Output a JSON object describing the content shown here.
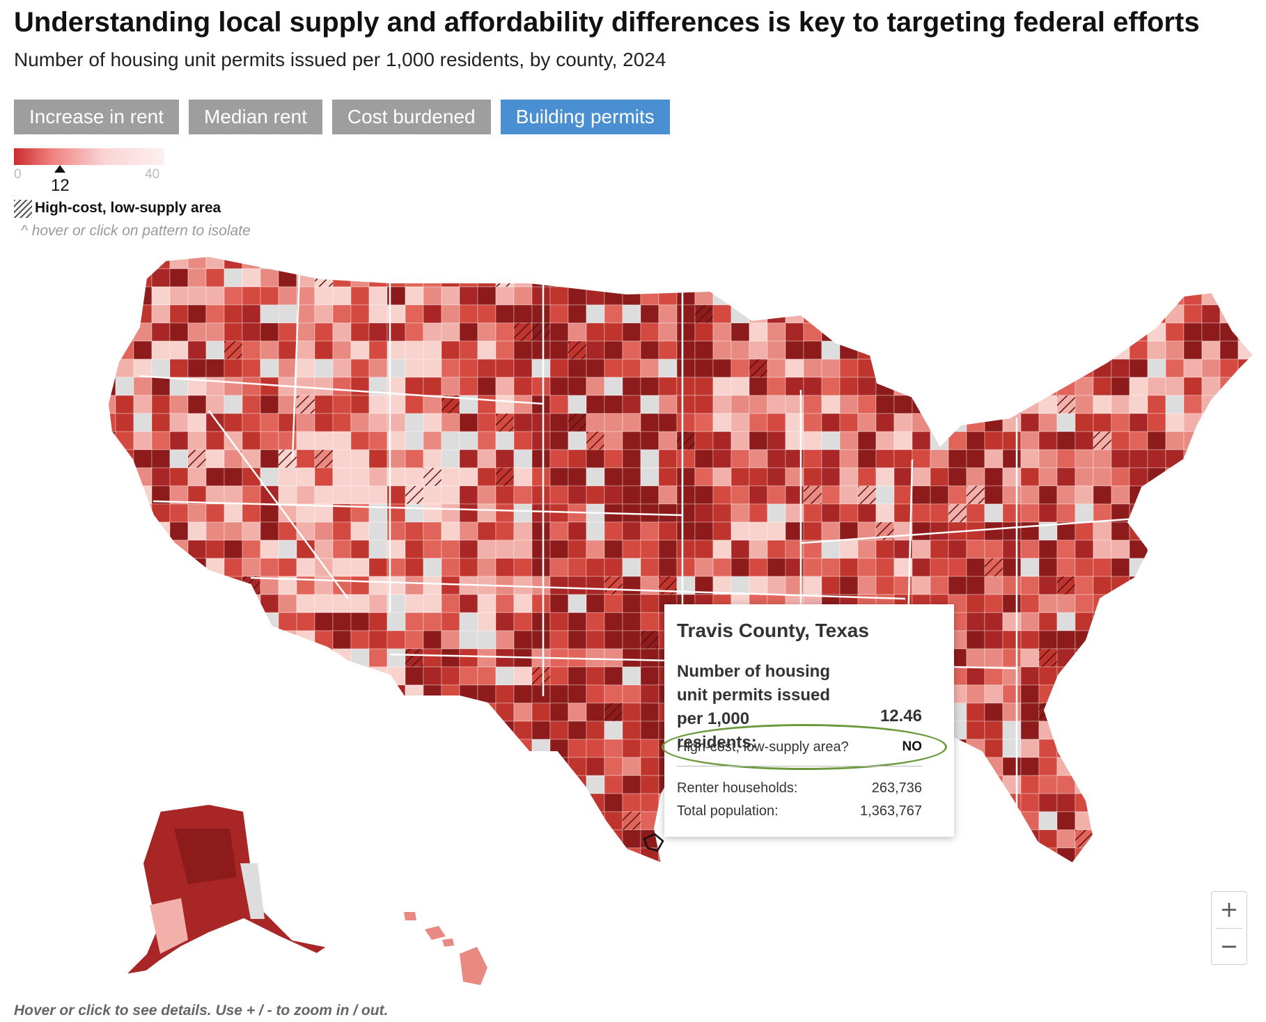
{
  "header": {
    "title": "Understanding local supply and affordability differences is key to targeting federal efforts",
    "subtitle": "Number of housing unit permits issued per 1,000 residents, by county, 2024"
  },
  "tabs": [
    {
      "label": "Increase in rent",
      "active": false
    },
    {
      "label": "Median rent",
      "active": false
    },
    {
      "label": "Cost burdened",
      "active": false
    },
    {
      "label": "Building permits",
      "active": true
    }
  ],
  "legend": {
    "min_label": "0",
    "max_label": "40",
    "marker_value": "12",
    "color_low": "#cc2b2b",
    "color_high": "#fdf0f0",
    "hatch_label": "High-cost, low-supply area",
    "hint": "^ hover or click on pattern to isolate"
  },
  "tooltip": {
    "county": "Travis County, Texas",
    "metric_label": "Number of housing unit permits issued per 1,000 residents:",
    "metric_value": "12.46",
    "high_cost_label": "High-cost, low-supply area?",
    "high_cost_value": "NO",
    "renter_label": "Renter households:",
    "renter_value": "263,736",
    "population_label": "Total population:",
    "population_value": "1,363,767"
  },
  "zoom": {
    "in_label": "+",
    "out_label": "−"
  },
  "footer": "Hover or click to see details. Use + / - to zoom in / out.",
  "colors": {
    "accent_tab": "#4a8fd1",
    "inactive_tab": "#9e9e9e",
    "no_data": "#dddddd",
    "highlight_ring": "#6a9a3c",
    "palette": [
      "#8e1b1b",
      "#a82626",
      "#c0342e",
      "#d44a40",
      "#e0645a",
      "#e98a82",
      "#f2b0aa",
      "#f8d2cd"
    ]
  }
}
